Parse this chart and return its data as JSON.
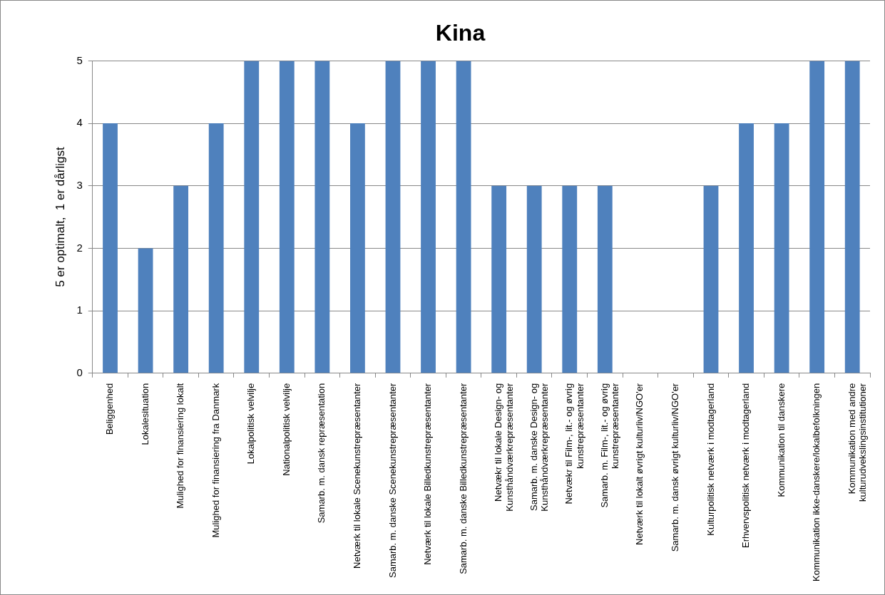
{
  "chart_data": {
    "type": "bar",
    "title": "Kina",
    "ylabel": "5 er optimalt,  1 er dårligst",
    "categories": [
      "Beliggenhed",
      "Lokalesituation",
      "Mulighed for finansiering lokalt",
      "Mulighed for finansiering fra Danmark",
      "Lokalpolitisk velvilje",
      "Nationalpolitisk velvilje",
      "Samarb. m. dansk repræsentation",
      "Netværk til lokale Scenekunstrepræsentanter",
      "Samarb. m. danske Scenekunstrepræsentanter",
      "Netværk til lokale Billedkunstrepræsentanter",
      "Samarb. m. danske Billedkunstrepræsentanter",
      "Netvækr til lokale Design- og\nKunsthåndværkrepræsentanter",
      "Samarb. m. danske Design- og\nKunsthåndværkrepræsentanter",
      "Netvækr til Film-, lit.- og øvrig\nkunstrepræsentanter",
      "Samarb. m. Film-, lit.- og øvrig\nkunstrepræsentanter",
      "Netværk til lokalt øvrigt kulturliv/NGO'er",
      "Samarb. m. dansk øvrigt kulturliv/NGO'er",
      "Kulturpolitisk netværk i modtagerland",
      "Erhvervspolitisk netværk i modtagerland",
      "Kommunikation til danskere",
      "Kommunikation ikke-danskere/lokalbefolkningen",
      "Kommunikation med andre\nkulturudvekslingsinstitutioner"
    ],
    "values": [
      4,
      2,
      3,
      4,
      5,
      5,
      5,
      4,
      5,
      5,
      5,
      3,
      3,
      3,
      3,
      0,
      0,
      3,
      4,
      4,
      5,
      5
    ],
    "color": "#4f81bd",
    "ylim": [
      0,
      5
    ],
    "yticks": [
      0,
      1,
      2,
      3,
      4,
      5
    ],
    "grid": "y",
    "legend": false
  }
}
